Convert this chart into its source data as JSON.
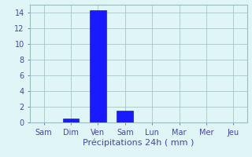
{
  "categories": [
    "Sam",
    "Dim",
    "Ven",
    "Sam",
    "Lun",
    "Mar",
    "Mer",
    "Jeu"
  ],
  "values_by_cat": {
    "Sam": 0,
    "Dim": 0.5,
    "Ven_pre": 14.3,
    "Ven_post": 1.5
  },
  "bar_positions": [
    0,
    1,
    2,
    3,
    4,
    5,
    6,
    7
  ],
  "bar_values": [
    0,
    0.5,
    14.3,
    1.5,
    0,
    0,
    0,
    0
  ],
  "bar_color": "#1a1aff",
  "bar_edge_color": "#0000cc",
  "background_color": "#e0f5f5",
  "grid_color": "#9bbcbc",
  "axis_label_color": "#4444aa",
  "tick_label_color": "#4444aa",
  "xlabel": "Précipitations 24h ( mm )",
  "ylim": [
    0,
    15
  ],
  "yticks": [
    0,
    2,
    4,
    6,
    8,
    10,
    12,
    14
  ],
  "xlabel_fontsize": 8,
  "tick_fontsize": 7,
  "xtick_labels": [
    "Sam",
    "Dim",
    "Ven",
    "Sam",
    "Lun",
    "Mar",
    "Mer",
    "Jeu"
  ],
  "figsize": [
    3.2,
    2.0
  ],
  "dpi": 100
}
